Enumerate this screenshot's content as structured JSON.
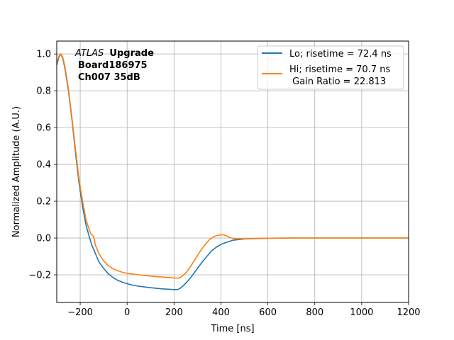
{
  "chart_data": {
    "type": "line",
    "title": "",
    "xlabel": "Time [ns]",
    "ylabel": "Normalized Amplitude (A.U.)",
    "xlim": [
      -300,
      1200
    ],
    "ylim": [
      -0.35,
      1.07
    ],
    "xticks": [
      -200,
      0,
      200,
      400,
      600,
      800,
      1000,
      1200
    ],
    "xtick_labels": [
      "−200",
      "0",
      "200",
      "400",
      "600",
      "800",
      "1000",
      "1200"
    ],
    "yticks": [
      -0.2,
      0.0,
      0.2,
      0.4,
      0.6,
      0.8,
      1.0
    ],
    "ytick_labels": [
      "−0.2",
      "0.0",
      "0.2",
      "0.4",
      "0.6",
      "0.8",
      "1.0"
    ],
    "grid": true,
    "legend_position": "top-right",
    "annotation": {
      "italic": "ATLAS",
      "bold": "Upgrade",
      "line2": "Board186975",
      "line3": "Ch007 35dB"
    },
    "series": [
      {
        "name": "Lo; risetime = 72.4 ns",
        "color": "#1f77b4",
        "x": [
          -300,
          -290,
          -283,
          -275,
          -265,
          -250,
          -235,
          -220,
          -205,
          -190,
          -175,
          -160,
          -150,
          -140,
          -130,
          -120,
          -100,
          -80,
          -60,
          -40,
          -20,
          0,
          20,
          50,
          100,
          150,
          200,
          215,
          225,
          240,
          260,
          280,
          300,
          320,
          340,
          360,
          380,
          400,
          420,
          450,
          500,
          550,
          600,
          700,
          800,
          900,
          1000,
          1100,
          1200
        ],
        "y": [
          0.94,
          0.985,
          1.0,
          0.98,
          0.92,
          0.8,
          0.64,
          0.46,
          0.3,
          0.17,
          0.07,
          0.0,
          -0.04,
          -0.07,
          -0.1,
          -0.13,
          -0.165,
          -0.195,
          -0.215,
          -0.23,
          -0.24,
          -0.248,
          -0.255,
          -0.262,
          -0.27,
          -0.276,
          -0.28,
          -0.28,
          -0.274,
          -0.258,
          -0.232,
          -0.2,
          -0.165,
          -0.13,
          -0.1,
          -0.07,
          -0.05,
          -0.035,
          -0.025,
          -0.012,
          -0.005,
          -0.003,
          -0.001,
          0.0,
          0.0,
          0.0,
          0.0,
          0.0,
          0.0
        ]
      },
      {
        "name": "Hi; risetime = 70.7 ns",
        "color": "#ff7f0e",
        "x": [
          -300,
          -290,
          -283,
          -275,
          -265,
          -250,
          -235,
          -220,
          -205,
          -190,
          -175,
          -160,
          -153,
          -148,
          -143,
          -135,
          -120,
          -100,
          -80,
          -60,
          -40,
          -20,
          0,
          50,
          100,
          150,
          200,
          215,
          230,
          250,
          270,
          290,
          310,
          330,
          350,
          370,
          390,
          405,
          420,
          435,
          450,
          470,
          500,
          550,
          600,
          700,
          800,
          900,
          1000,
          1100,
          1200
        ],
        "y": [
          0.95,
          0.99,
          1.0,
          0.985,
          0.93,
          0.81,
          0.65,
          0.48,
          0.32,
          0.2,
          0.1,
          0.04,
          0.02,
          0.015,
          0.01,
          -0.04,
          -0.085,
          -0.125,
          -0.15,
          -0.167,
          -0.178,
          -0.186,
          -0.192,
          -0.2,
          -0.207,
          -0.212,
          -0.217,
          -0.218,
          -0.212,
          -0.19,
          -0.155,
          -0.115,
          -0.075,
          -0.04,
          -0.01,
          0.008,
          0.016,
          0.018,
          0.014,
          0.005,
          -0.002,
          -0.005,
          -0.004,
          -0.002,
          -0.001,
          0.0,
          0.0,
          0.0,
          0.0,
          0.0,
          0.0
        ]
      }
    ],
    "legend_extra": " Gain Ratio = 22.813"
  }
}
